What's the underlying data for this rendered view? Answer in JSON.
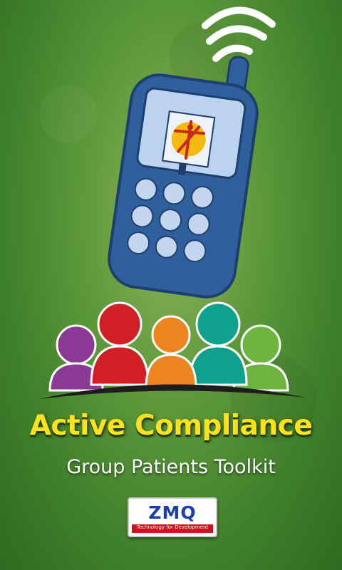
{
  "app": {
    "title": "Active Compliance",
    "subtitle": "Group Patients Toolkit"
  },
  "logo": {
    "name": "ZMQ",
    "tagline": "Technology for Development"
  },
  "icons": [
    "wifi-signal-icon",
    "mobile-phone-icon",
    "health-symbol-icon",
    "patient-group-icon"
  ],
  "colors": {
    "background": "#4f8a32",
    "title": "#ffe21a",
    "subtitle": "#ffffff",
    "phone_body": "#2f5f9c",
    "phone_keys": "#c3d6ee",
    "people": [
      "#8a3a93",
      "#d21f26",
      "#ee8420",
      "#0fa08e",
      "#6cb640"
    ],
    "logo_text": "#1a3fa8",
    "logo_accent": "#d0101a"
  }
}
